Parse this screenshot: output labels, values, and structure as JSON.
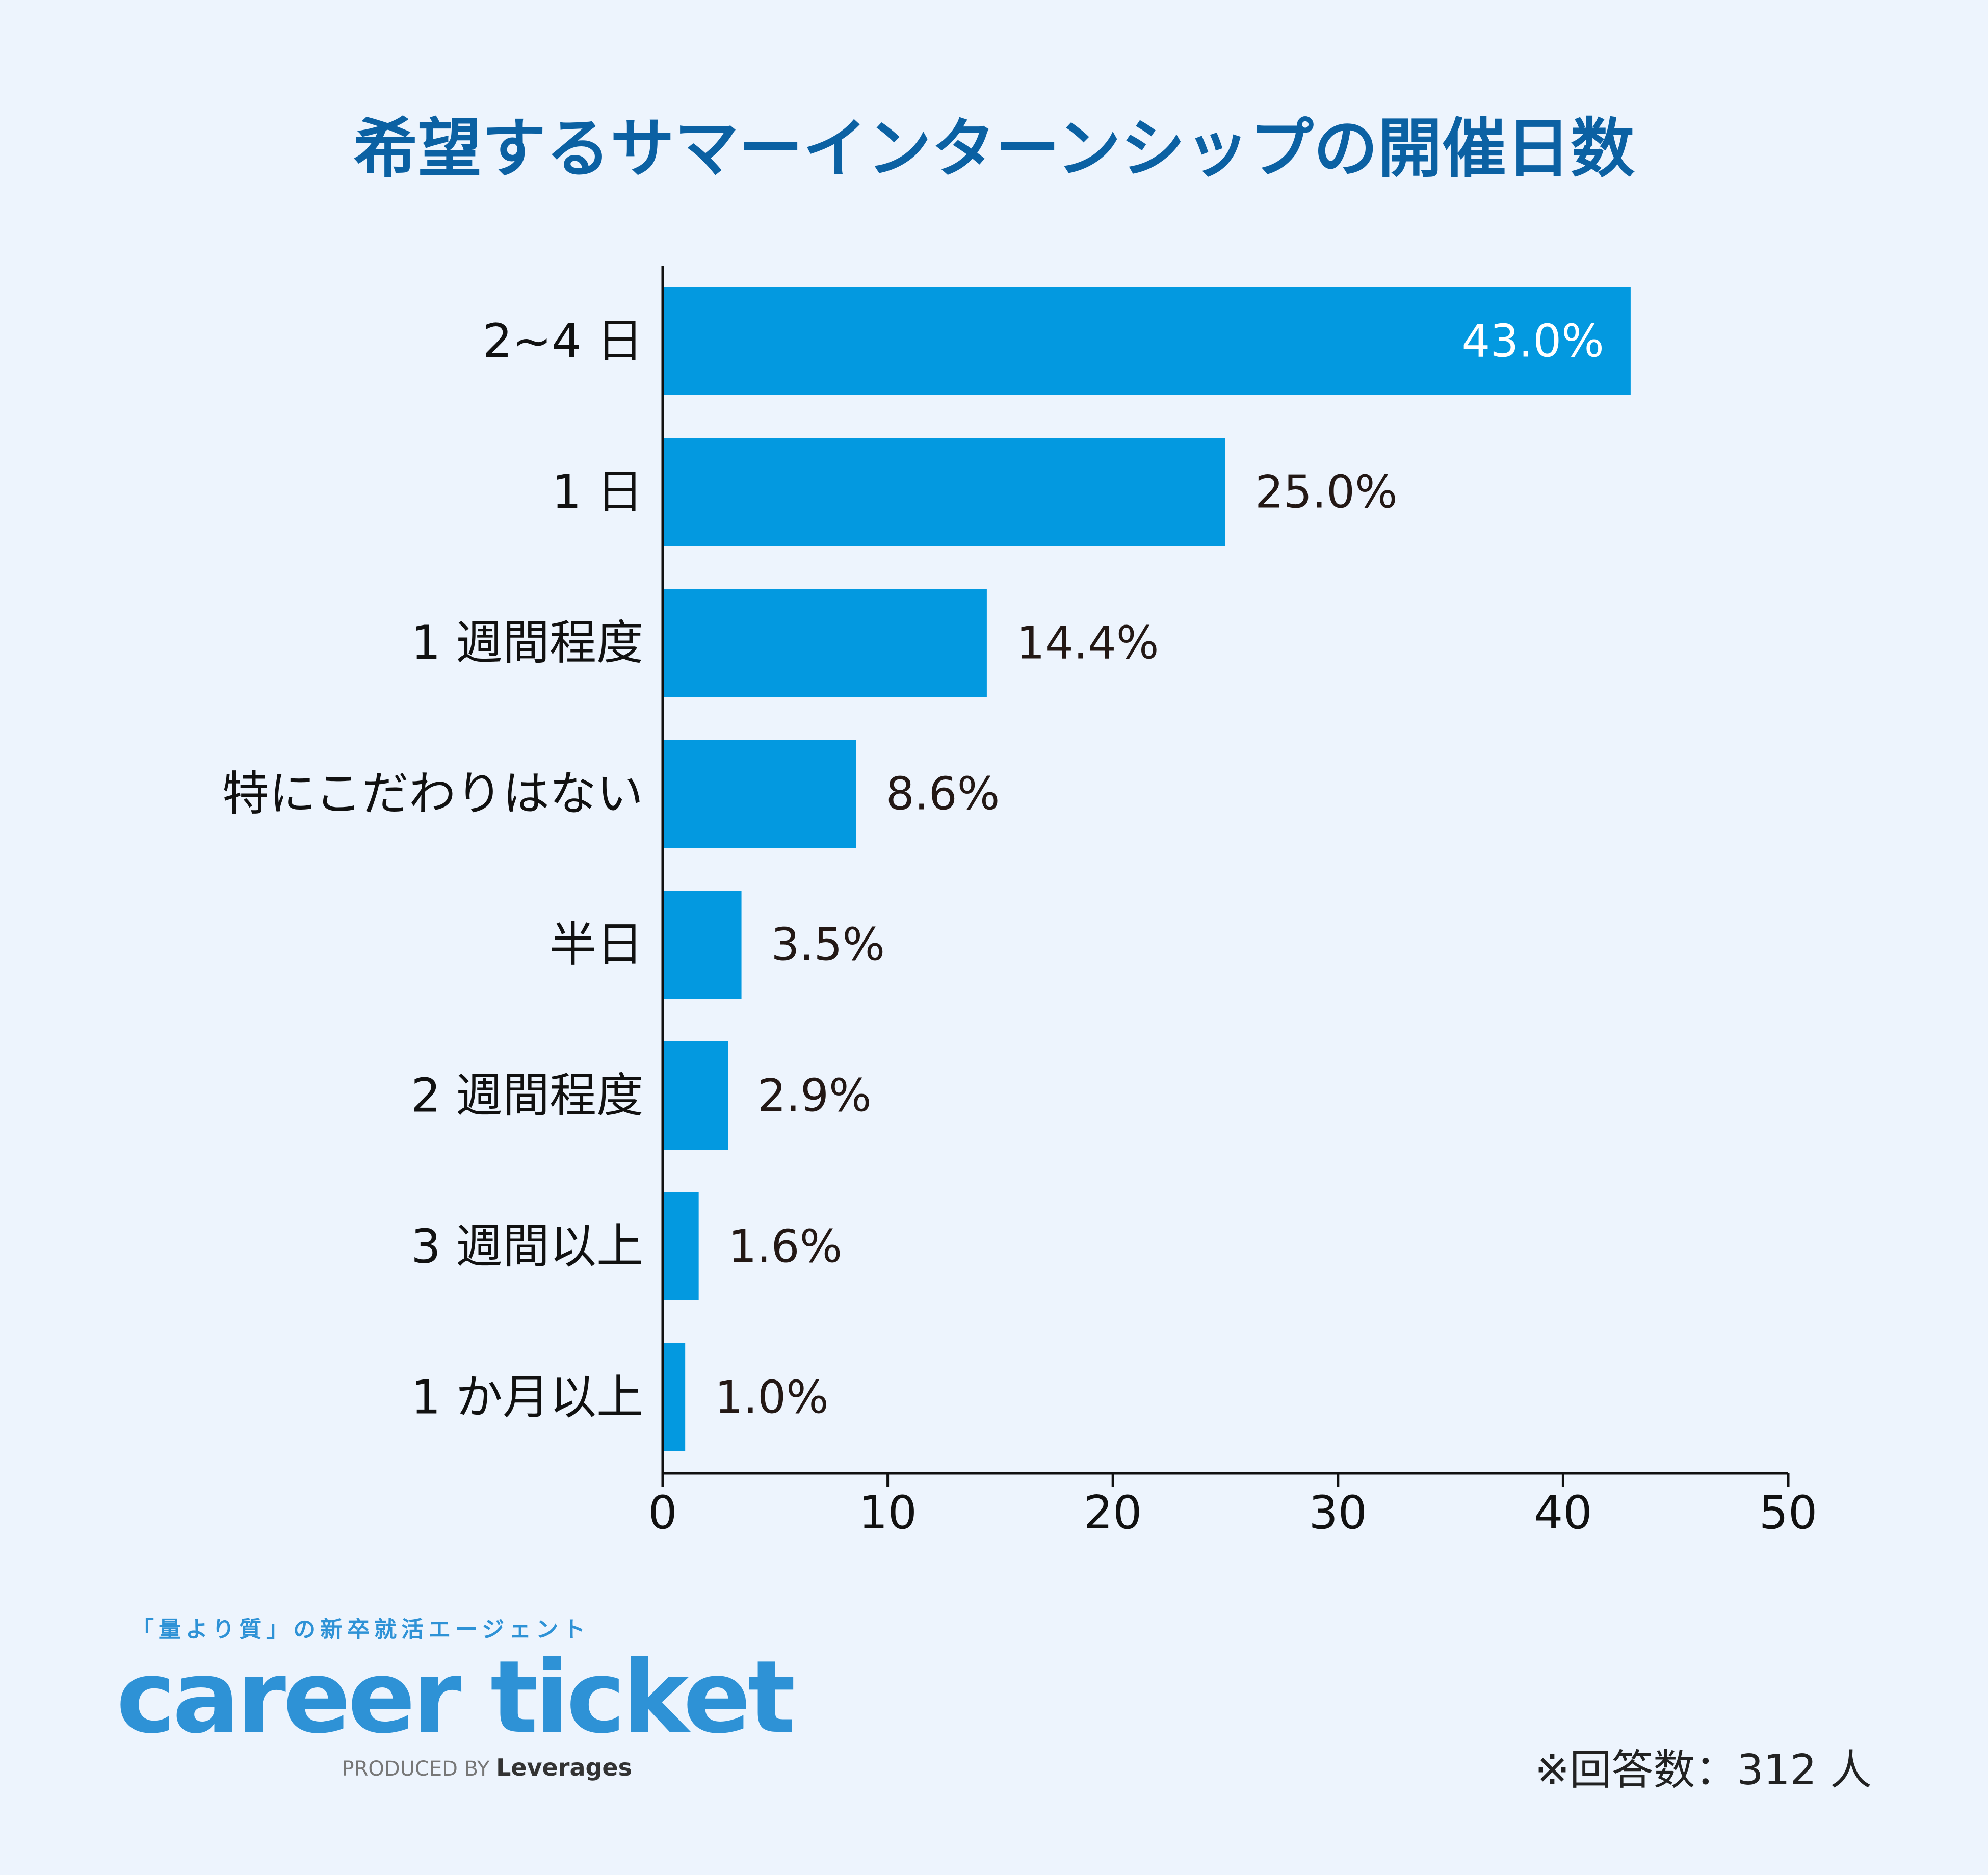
{
  "chart_data": {
    "type": "bar",
    "orientation": "horizontal",
    "title": "希望するサマーインターンシップの開催日数",
    "categories": [
      "2~4 日",
      "1 日",
      "1 週間程度",
      "特にこだわりはない",
      "半日",
      "2 週間程度",
      "3 週間以上",
      "1 か月以上"
    ],
    "values": [
      43.0,
      25.0,
      14.4,
      8.6,
      3.5,
      2.9,
      1.6,
      1.0
    ],
    "value_labels": [
      "43.0%",
      "25.0%",
      "14.4%",
      "8.6%",
      "3.5%",
      "2.9%",
      "1.6%",
      "1.0%"
    ],
    "xlim": [
      0,
      50
    ],
    "xticks": [
      0,
      10,
      20,
      30,
      40,
      50
    ],
    "grid": false,
    "bar_color": "#0399E0"
  },
  "brand": {
    "tagline": "「量より質」の新卒就活エージェント",
    "logo": "career ticket",
    "produced_by": "PRODUCED BY",
    "company": "Leverages",
    "color": "#2E92D6"
  },
  "note": "※回答数：312 人"
}
